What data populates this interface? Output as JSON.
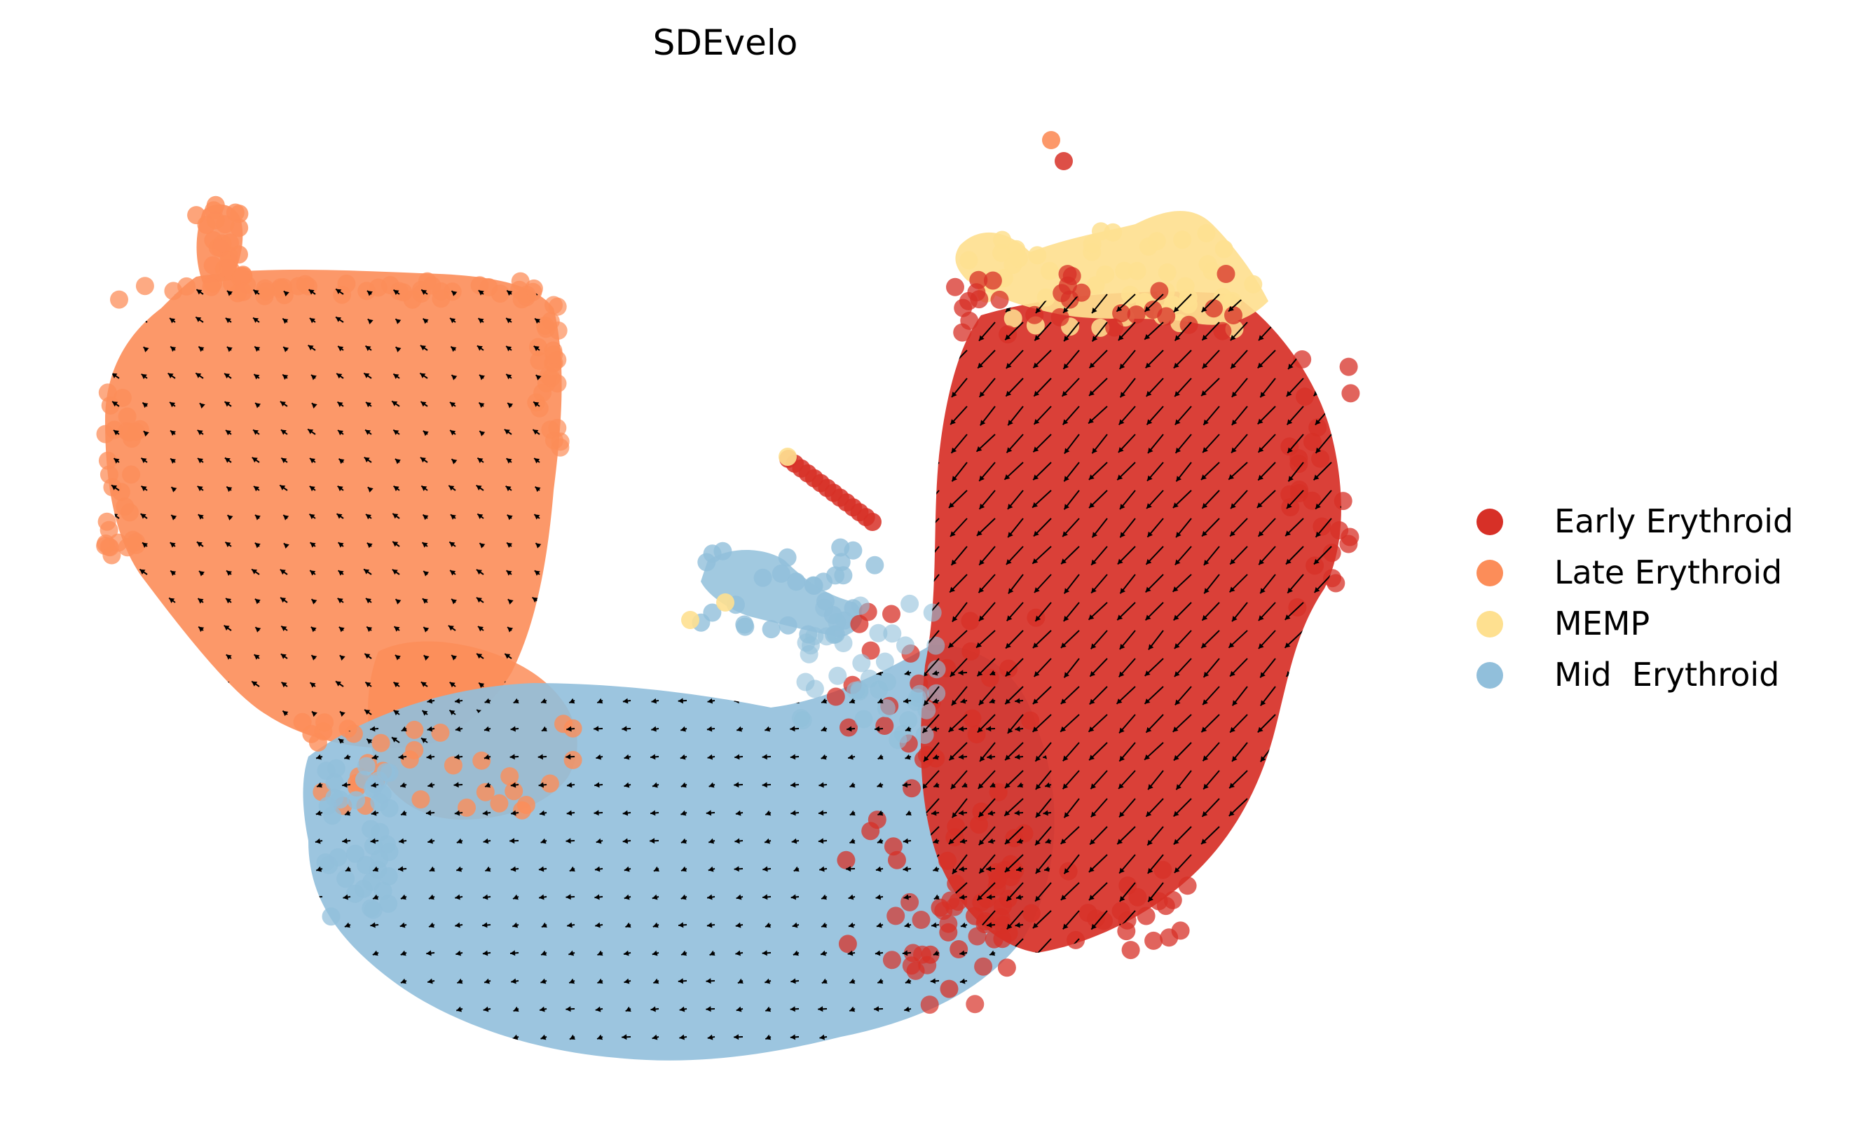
{
  "chart_data": {
    "type": "scatter",
    "title": "SDEvelo",
    "xlabel": "",
    "ylabel": "",
    "axes_visible": false,
    "grid": false,
    "legend_position": "right",
    "overlay": "velocity stream arrows (black)",
    "series": [
      {
        "name": "Early Erythroid",
        "color": "#d73027"
      },
      {
        "name": "Late Erythroid",
        "color": "#fc8d59"
      },
      {
        "name": "MEMP",
        "color": "#fee090"
      },
      {
        "name": "Mid  Erythroid",
        "color": "#91bfdb"
      }
    ]
  }
}
